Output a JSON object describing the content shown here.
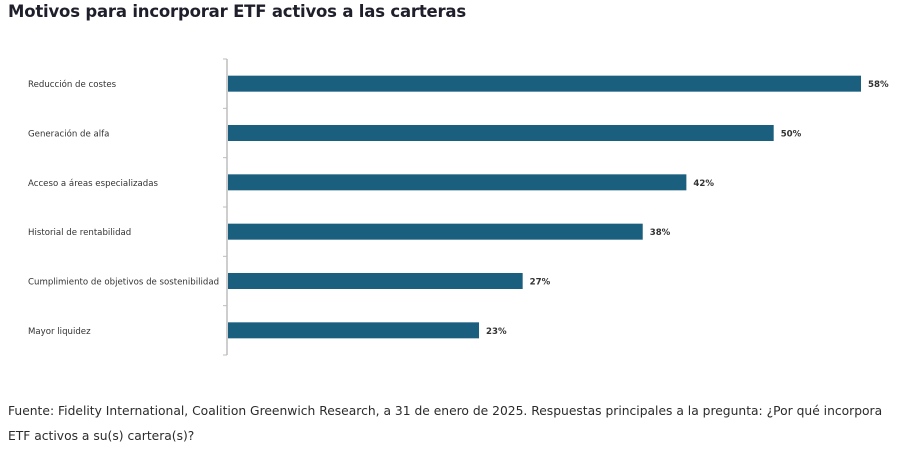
{
  "header": {
    "title": "Motivos para incorporar ETF activos a las carteras"
  },
  "chart_data": {
    "type": "bar",
    "orientation": "horizontal",
    "title": "Motivos para incorporar ETF activos a las carteras",
    "xlabel": "",
    "ylabel": "",
    "categories": [
      "Reducción de costes",
      "Generación de alfa",
      "Acceso a áreas especializadas",
      "Historial de rentabilidad",
      "Cumplimiento de objetivos de sostenibilidad",
      "Mayor liquidez"
    ],
    "values": [
      58,
      50,
      42,
      38,
      27,
      23
    ],
    "value_labels": [
      "58%",
      "50%",
      "42%",
      "38%",
      "27%",
      "23%"
    ],
    "unit": "%",
    "xlim": [
      0,
      60
    ],
    "grid": false,
    "legend": "none",
    "bar_color": "#1b5f7f"
  },
  "footnote": {
    "text": "Fuente: Fidelity International, Coalition Greenwich Research, a 31 de enero de 2025. Respuestas principales a la pregunta: ¿Por qué incorpora ETF activos a su(s) cartera(s)?"
  }
}
